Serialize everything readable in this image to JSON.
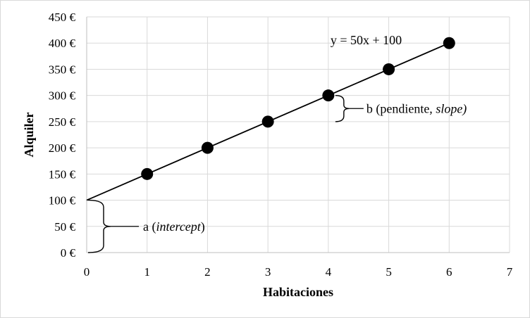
{
  "chart_data": {
    "type": "scatter",
    "title": "",
    "xlabel": "Habitaciones",
    "ylabel": "Alquiler",
    "xlim": [
      0,
      7
    ],
    "ylim": [
      0,
      450
    ],
    "x_ticks": [
      0,
      1,
      2,
      3,
      4,
      5,
      6,
      7
    ],
    "y_ticks": [
      0,
      50,
      100,
      150,
      200,
      250,
      300,
      350,
      400,
      450
    ],
    "y_tick_suffix": " €",
    "grid": true,
    "series": [
      {
        "x": [
          1,
          2,
          3,
          4,
          5,
          6
        ],
        "y": [
          150,
          200,
          250,
          300,
          350,
          400
        ],
        "marker_color": "#000000"
      }
    ],
    "trendline": {
      "equation": "y = 50x + 100",
      "slope": 50,
      "intercept": 100,
      "x_range": [
        0,
        6
      ],
      "color": "#000000"
    },
    "annotations": {
      "intercept_prefix": "a (",
      "intercept_italic": "intercept",
      "intercept_suffix": ")",
      "slope_prefix": "b (pendiente, ",
      "slope_italic": "slope)"
    }
  }
}
